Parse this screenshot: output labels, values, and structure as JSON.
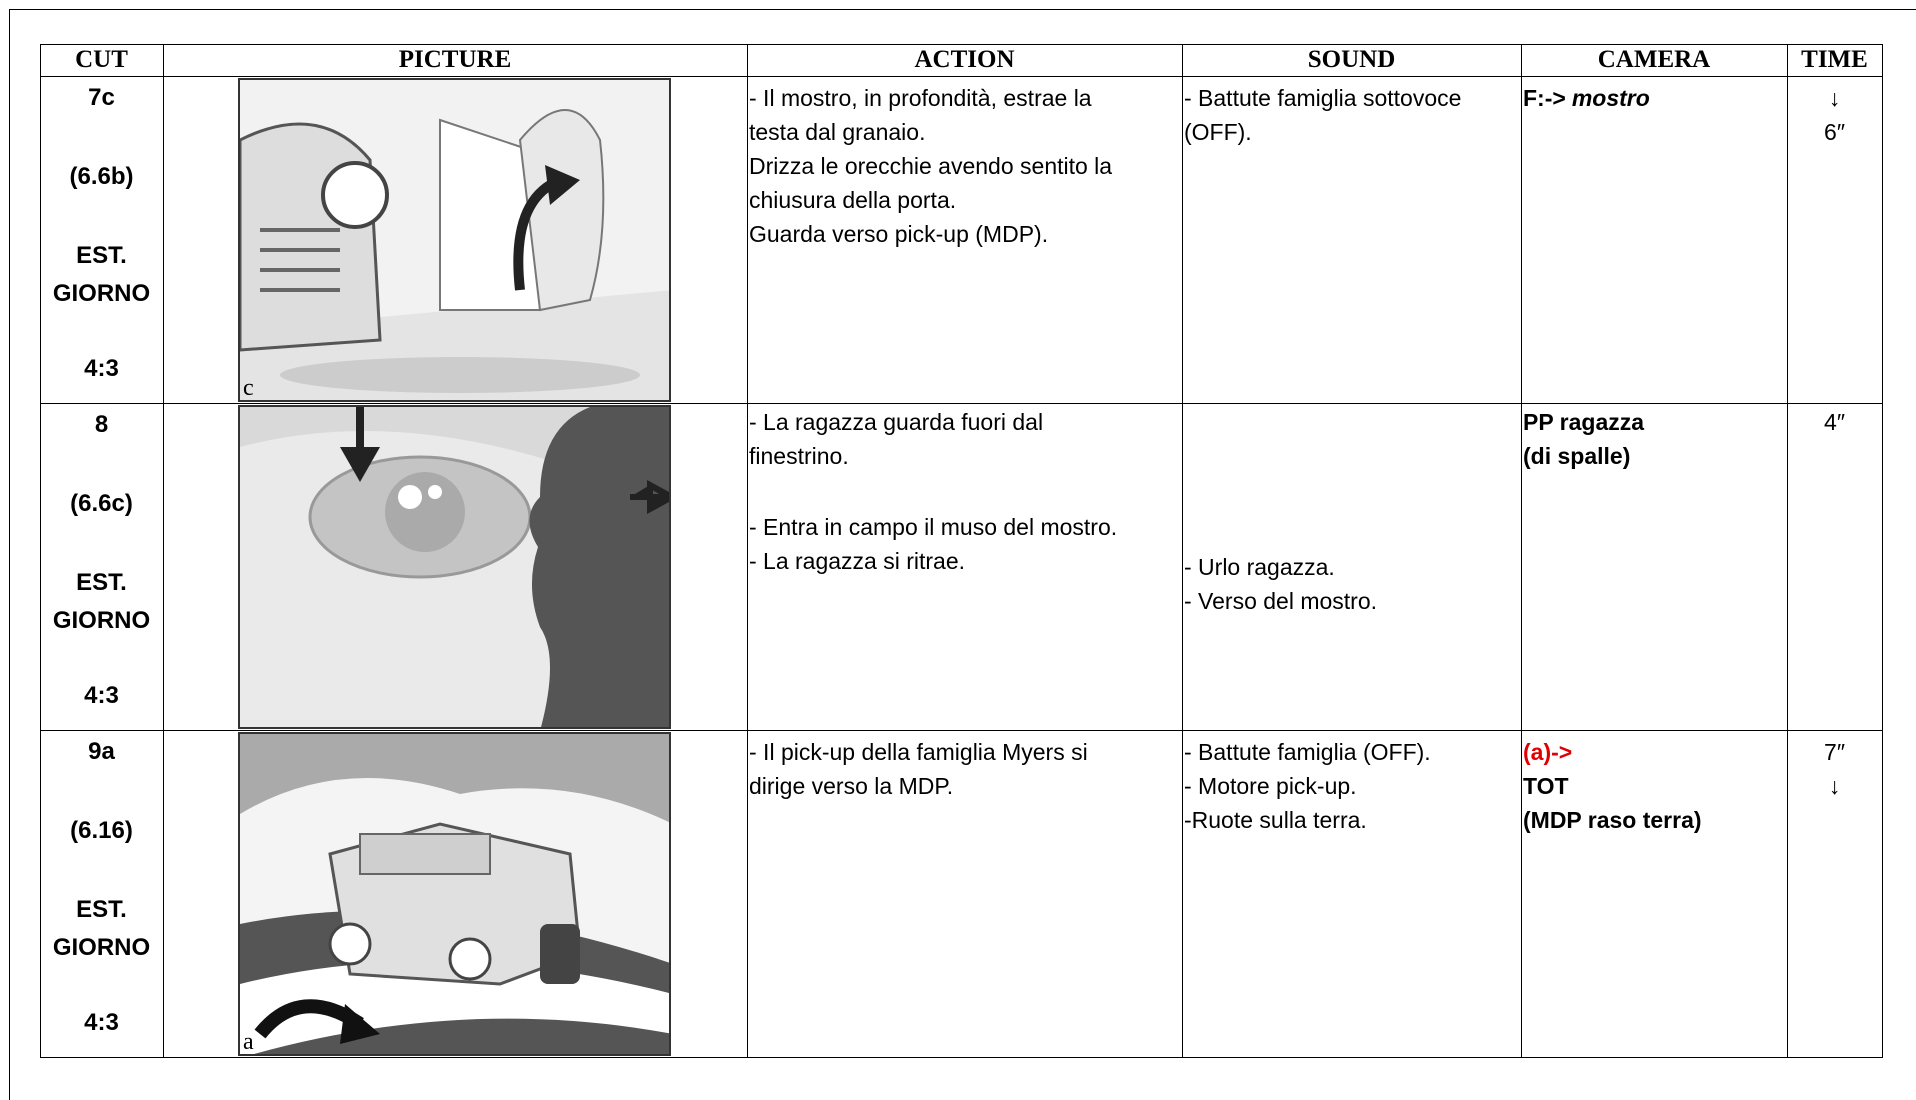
{
  "table": {
    "headers": [
      "CUT",
      "PICTURE",
      "ACTION",
      "SOUND",
      "CAMERA",
      "TIME"
    ],
    "rows": [
      {
        "cut": [
          "7c",
          "(6.6b)",
          "EST.",
          "GIORNO",
          "4:3"
        ],
        "picture_label": "c",
        "action": [
          "- Il mostro, in profondità, estrae la",
          "testa dal granaio.",
          "Drizza le orecchie avendo sentito la",
          "chiusura della porta.",
          "Guarda verso pick-up (MDP)."
        ],
        "sound": [
          "- Battute famiglia sottovoce",
          "(OFF)."
        ],
        "camera": [
          "F:->",
          "mostro"
        ],
        "time": [
          "↓",
          "6″"
        ]
      },
      {
        "cut": [
          "8",
          "(6.6c)",
          "EST.",
          "GIORNO",
          "4:3"
        ],
        "action": [
          "- La ragazza guarda fuori dal",
          "finestrino.",
          "- Entra in campo il muso del mostro.",
          "- La ragazza si ritrae."
        ],
        "sound": [
          "- Urlo ragazza.",
          "- Verso del mostro."
        ],
        "camera": [
          "PP ragazza",
          "(di spalle)"
        ],
        "time": [
          "4″"
        ]
      },
      {
        "cut": [
          "9a",
          "(6.16)",
          "EST.",
          "GIORNO",
          "4:3"
        ],
        "picture_label": "a",
        "action": [
          "- Il pick-up della famiglia Myers si",
          "dirige verso la MDP."
        ],
        "sound": [
          "- Battute famiglia (OFF).",
          "- Motore pick-up.",
          "-Ruote sulla terra."
        ],
        "camera": [
          "(a)->",
          "TOT",
          "(MDP raso terra)"
        ],
        "time": [
          "7″",
          "↓"
        ]
      }
    ]
  }
}
